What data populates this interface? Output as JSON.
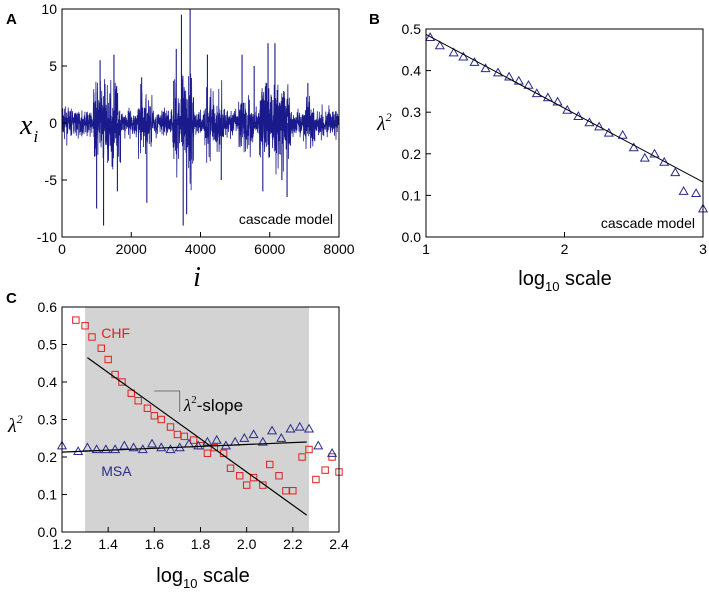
{
  "chart_data": [
    {
      "panel": "A",
      "type": "line",
      "title": "",
      "xlabel": "i",
      "ylabel": "x_i",
      "ylabel_main": "x",
      "ylabel_sub": "i",
      "xlim": [
        0,
        8000
      ],
      "ylim": [
        -10,
        10
      ],
      "xticks": [
        0,
        2000,
        4000,
        6000,
        8000
      ],
      "yticks": [
        -10,
        -5,
        0,
        5,
        10
      ],
      "annotations": [
        "cascade model"
      ],
      "series_color": "#1a1a8c",
      "series": [
        {
          "name": "x_i",
          "length": 8000,
          "peaks": [
            {
              "x": 1000,
              "y": -7.5
            },
            {
              "x": 1100,
              "y": 5.5
            },
            {
              "x": 1200,
              "y": -9.0
            },
            {
              "x": 1500,
              "y": 6.0
            },
            {
              "x": 1600,
              "y": -6.0
            },
            {
              "x": 2300,
              "y": 4.0
            },
            {
              "x": 2450,
              "y": -7.0
            },
            {
              "x": 3300,
              "y": 6.5
            },
            {
              "x": 3450,
              "y": 9.5
            },
            {
              "x": 3500,
              "y": -9.0
            },
            {
              "x": 3600,
              "y": -8.0
            },
            {
              "x": 3700,
              "y": 10.0
            },
            {
              "x": 4200,
              "y": 6.0
            },
            {
              "x": 4600,
              "y": -5.0
            },
            {
              "x": 5200,
              "y": 6.0
            },
            {
              "x": 5550,
              "y": 5.0
            },
            {
              "x": 5800,
              "y": -6.0
            },
            {
              "x": 5950,
              "y": 7.0
            },
            {
              "x": 6150,
              "y": 7.0
            },
            {
              "x": 6350,
              "y": -5.0
            },
            {
              "x": 6500,
              "y": -6.5
            },
            {
              "x": 7100,
              "y": 3.5
            }
          ]
        }
      ]
    },
    {
      "panel": "B",
      "type": "scatter",
      "title": "",
      "xlabel": "log10 scale",
      "xlabel_main": "log",
      "xlabel_sub": "10",
      "xlabel_rest": " scale",
      "ylabel": "λ²",
      "ylabel_main": "λ",
      "ylabel_sup": "2",
      "xlim": [
        1,
        3
      ],
      "ylim": [
        0,
        0.5
      ],
      "xticks": [
        1,
        2,
        3
      ],
      "yticks": [
        0,
        0.1,
        0.2,
        0.3,
        0.4,
        0.5
      ],
      "ytick_labels": [
        "0.0",
        "0.1",
        "0.2",
        "0.3",
        "0.4",
        "0.5"
      ],
      "annotations": [
        "cascade model"
      ],
      "marker": "triangle",
      "marker_color": "#2a2a8c",
      "series": [
        {
          "name": "cascade model",
          "x": [
            1.03,
            1.1,
            1.2,
            1.27,
            1.35,
            1.43,
            1.52,
            1.6,
            1.67,
            1.74,
            1.8,
            1.88,
            1.95,
            2.02,
            2.1,
            2.18,
            2.25,
            2.32,
            2.42,
            2.5,
            2.58,
            2.65,
            2.72,
            2.8,
            2.86,
            2.95,
            3.0
          ],
          "y": [
            0.48,
            0.46,
            0.443,
            0.433,
            0.42,
            0.405,
            0.395,
            0.385,
            0.375,
            0.365,
            0.345,
            0.335,
            0.325,
            0.305,
            0.29,
            0.275,
            0.265,
            0.25,
            0.245,
            0.215,
            0.19,
            0.2,
            0.18,
            0.155,
            0.11,
            0.105,
            0.068
          ]
        }
      ],
      "fit_line": {
        "x": [
          1.0,
          3.0
        ],
        "y": [
          0.487,
          0.132
        ]
      }
    },
    {
      "panel": "C",
      "type": "scatter",
      "title": "",
      "xlabel": "log10 scale",
      "xlabel_main": "log",
      "xlabel_sub": "10",
      "xlabel_rest": " scale",
      "ylabel": "λ²",
      "ylabel_main": "λ",
      "ylabel_sup": "2",
      "xlim": [
        1.2,
        2.4
      ],
      "ylim": [
        0,
        0.6
      ],
      "xticks": [
        1.2,
        1.4,
        1.6,
        1.8,
        2.0,
        2.2,
        2.4
      ],
      "xtick_labels": [
        "1.2",
        "1.4",
        "1.6",
        "1.8",
        "2.0",
        "2.2",
        "2.4"
      ],
      "yticks": [
        0,
        0.1,
        0.2,
        0.3,
        0.4,
        0.5,
        0.6
      ],
      "ytick_labels": [
        "0.0",
        "0.1",
        "0.2",
        "0.3",
        "0.4",
        "0.5",
        "0.6"
      ],
      "shaded_region": {
        "x": [
          1.3,
          2.27
        ],
        "color": "#d3d3d3"
      },
      "annotations": [
        "CHF",
        "MSA",
        "λ²-slope"
      ],
      "slope_label_main": "λ",
      "slope_label_sup": "2",
      "slope_label_rest": "-slope",
      "slope_triangle": {
        "x": [
          1.6,
          1.71
        ],
        "y": [
          0.376,
          0.32
        ]
      },
      "series": [
        {
          "name": "CHF",
          "marker": "square",
          "color": "#e02020",
          "x": [
            1.26,
            1.3,
            1.33,
            1.37,
            1.4,
            1.43,
            1.46,
            1.5,
            1.53,
            1.57,
            1.6,
            1.63,
            1.67,
            1.7,
            1.73,
            1.77,
            1.8,
            1.83,
            1.86,
            1.9,
            1.93,
            1.97,
            2.0,
            2.03,
            2.07,
            2.1,
            2.14,
            2.17,
            2.2,
            2.24,
            2.27,
            2.3,
            2.34,
            2.37,
            2.4
          ],
          "y": [
            0.565,
            0.55,
            0.52,
            0.49,
            0.46,
            0.42,
            0.4,
            0.37,
            0.35,
            0.33,
            0.31,
            0.3,
            0.28,
            0.26,
            0.255,
            0.245,
            0.23,
            0.21,
            0.225,
            0.21,
            0.17,
            0.15,
            0.125,
            0.145,
            0.125,
            0.18,
            0.15,
            0.11,
            0.11,
            0.2,
            0.22,
            0.14,
            0.165,
            0.2,
            0.16
          ]
        },
        {
          "name": "MSA",
          "marker": "triangle",
          "color": "#2a2a8c",
          "x": [
            1.2,
            1.27,
            1.31,
            1.35,
            1.39,
            1.43,
            1.47,
            1.51,
            1.55,
            1.59,
            1.63,
            1.67,
            1.71,
            1.75,
            1.79,
            1.83,
            1.87,
            1.91,
            1.95,
            1.99,
            2.03,
            2.07,
            2.11,
            2.15,
            2.19,
            2.23,
            2.27,
            2.31,
            2.37
          ],
          "y": [
            0.23,
            0.215,
            0.225,
            0.22,
            0.22,
            0.22,
            0.23,
            0.225,
            0.22,
            0.235,
            0.225,
            0.22,
            0.225,
            0.235,
            0.23,
            0.24,
            0.245,
            0.23,
            0.24,
            0.25,
            0.26,
            0.24,
            0.27,
            0.25,
            0.275,
            0.28,
            0.275,
            0.23,
            0.21
          ]
        }
      ],
      "fit_lines": [
        {
          "name": "CHF fit",
          "x": [
            1.31,
            2.26
          ],
          "y": [
            0.465,
            0.045
          ]
        },
        {
          "name": "MSA fit",
          "x": [
            1.2,
            2.26
          ],
          "y": [
            0.213,
            0.24
          ]
        }
      ]
    }
  ]
}
